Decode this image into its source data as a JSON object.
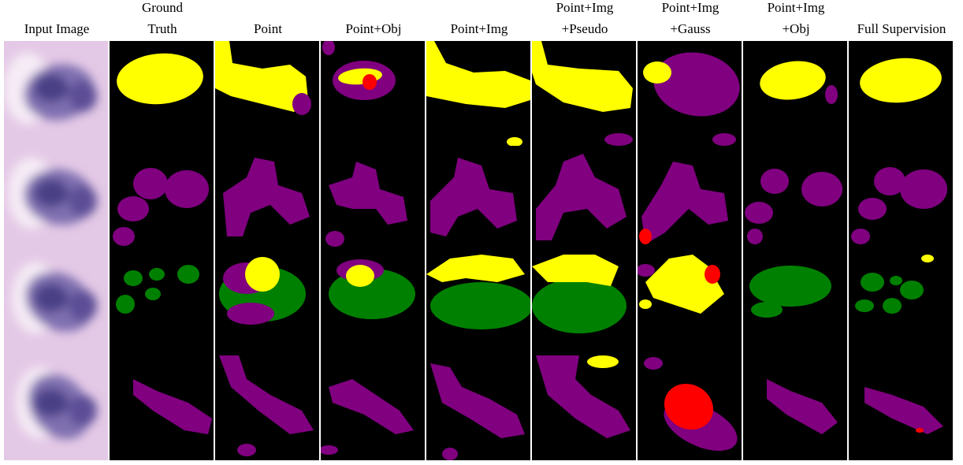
{
  "columns": [
    {
      "lines": [
        "Input Image"
      ]
    },
    {
      "lines": [
        "Ground",
        "Truth"
      ]
    },
    {
      "lines": [
        "Point"
      ]
    },
    {
      "lines": [
        "Point+Obj"
      ]
    },
    {
      "lines": [
        "Point+Img"
      ]
    },
    {
      "lines": [
        "Point+Img",
        "+Pseudo"
      ]
    },
    {
      "lines": [
        "Point+Img",
        "+Gauss"
      ]
    },
    {
      "lines": [
        "Point+Img",
        "+Obj"
      ]
    },
    {
      "lines": [
        "Full Supervision"
      ]
    }
  ]
}
